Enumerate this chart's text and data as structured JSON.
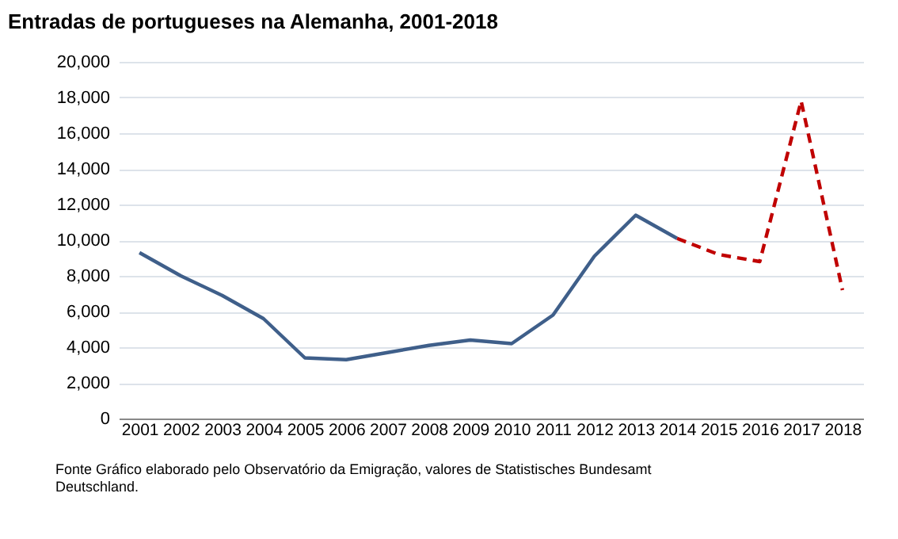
{
  "chart_data": {
    "type": "line",
    "title": "Entradas  de portugueses  na Alemanha, 2001-2018",
    "categories": [
      "2001",
      "2002",
      "2003",
      "2004",
      "2005",
      "2006",
      "2007",
      "2008",
      "2009",
      "2010",
      "2011",
      "2012",
      "2013",
      "2014",
      "2015",
      "2016",
      "2017",
      "2018"
    ],
    "series": [
      {
        "color": "#3f5f8a",
        "line_style": "solid",
        "values": [
          9300,
          8000,
          6900,
          5600,
          3400,
          3300,
          3700,
          4100,
          4400,
          4200,
          5800,
          9100,
          11400,
          10100,
          null,
          null,
          null,
          null
        ]
      },
      {
        "color": "#c00000",
        "line_style": "dashed",
        "values": [
          null,
          null,
          null,
          null,
          null,
          null,
          null,
          null,
          null,
          null,
          null,
          null,
          null,
          10100,
          9200,
          8800,
          17800,
          7200
        ]
      }
    ],
    "ylim": [
      0,
      20000
    ],
    "yticks": [
      0,
      {
        "value": 2000,
        "label": "2,000"
      },
      {
        "value": 4000,
        "label": "4,000"
      },
      {
        "value": 6000,
        "label": "6,000"
      },
      {
        "value": 8000,
        "label": "8,000"
      },
      {
        "value": 10000,
        "label": "10,000"
      },
      {
        "value": 12000,
        "label": "12,000"
      },
      {
        "value": 14000,
        "label": "14,000"
      },
      {
        "value": 16000,
        "label": "16,000"
      },
      {
        "value": 18000,
        "label": "18,000"
      },
      {
        "value": 20000,
        "label": "20,000"
      }
    ],
    "grid": "y",
    "marker": "none",
    "annotations": [
      "Fonte  Gráfico elaborado pelo Observatório da Emigração, valores de Statistisches Bundesamt\nDeutschland."
    ]
  }
}
